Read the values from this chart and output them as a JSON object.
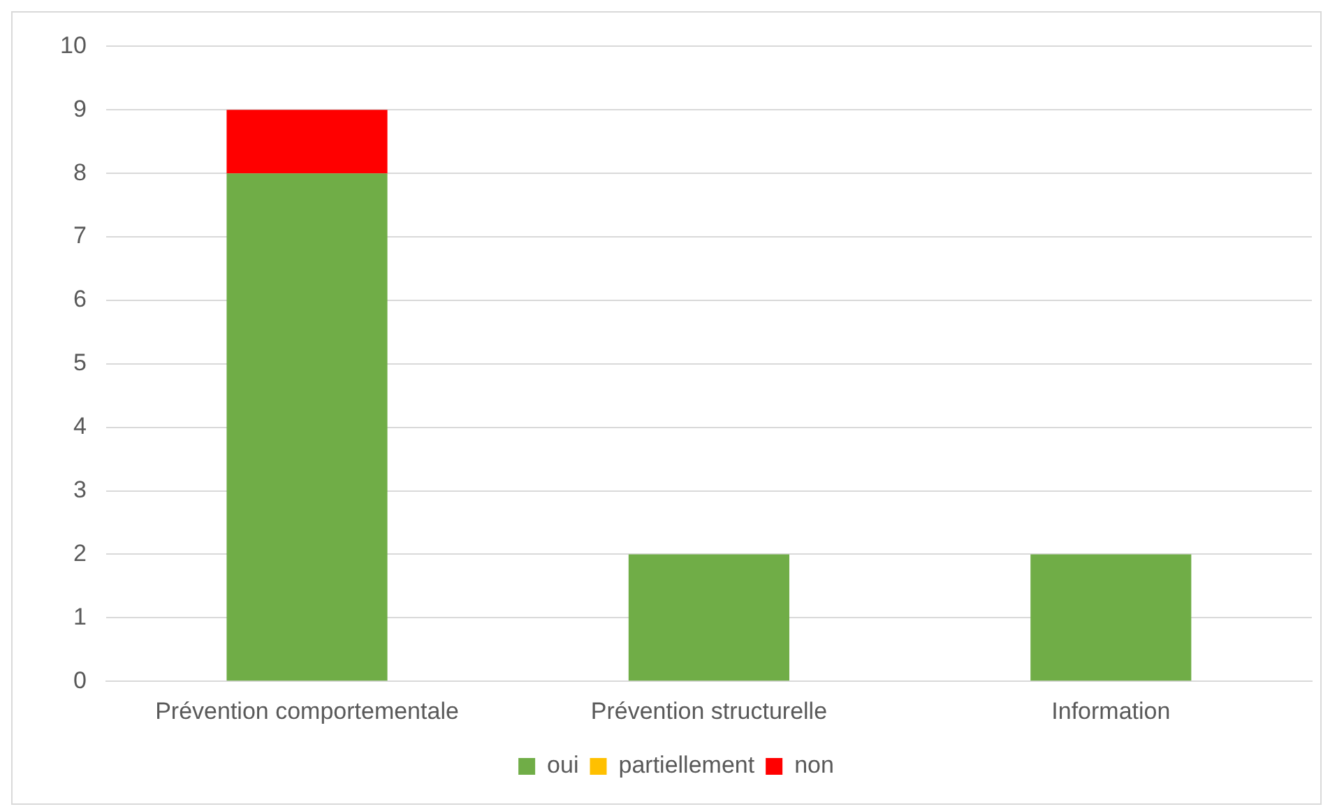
{
  "chart_data": {
    "type": "bar",
    "stacked": true,
    "categories": [
      "Prévention comportementale",
      "Prévention structurelle",
      "Information"
    ],
    "series": [
      {
        "name": "oui",
        "color": "#70ad47",
        "values": [
          8,
          2,
          2
        ]
      },
      {
        "name": "partiellement",
        "color": "#ffc000",
        "values": [
          0,
          0,
          0
        ]
      },
      {
        "name": "non",
        "color": "#ff0000",
        "values": [
          1,
          0,
          0
        ]
      }
    ],
    "ylim": [
      0,
      10
    ],
    "yticks": [
      0,
      1,
      2,
      3,
      4,
      5,
      6,
      7,
      8,
      9,
      10
    ],
    "grid": "y",
    "legend": "bottom"
  }
}
